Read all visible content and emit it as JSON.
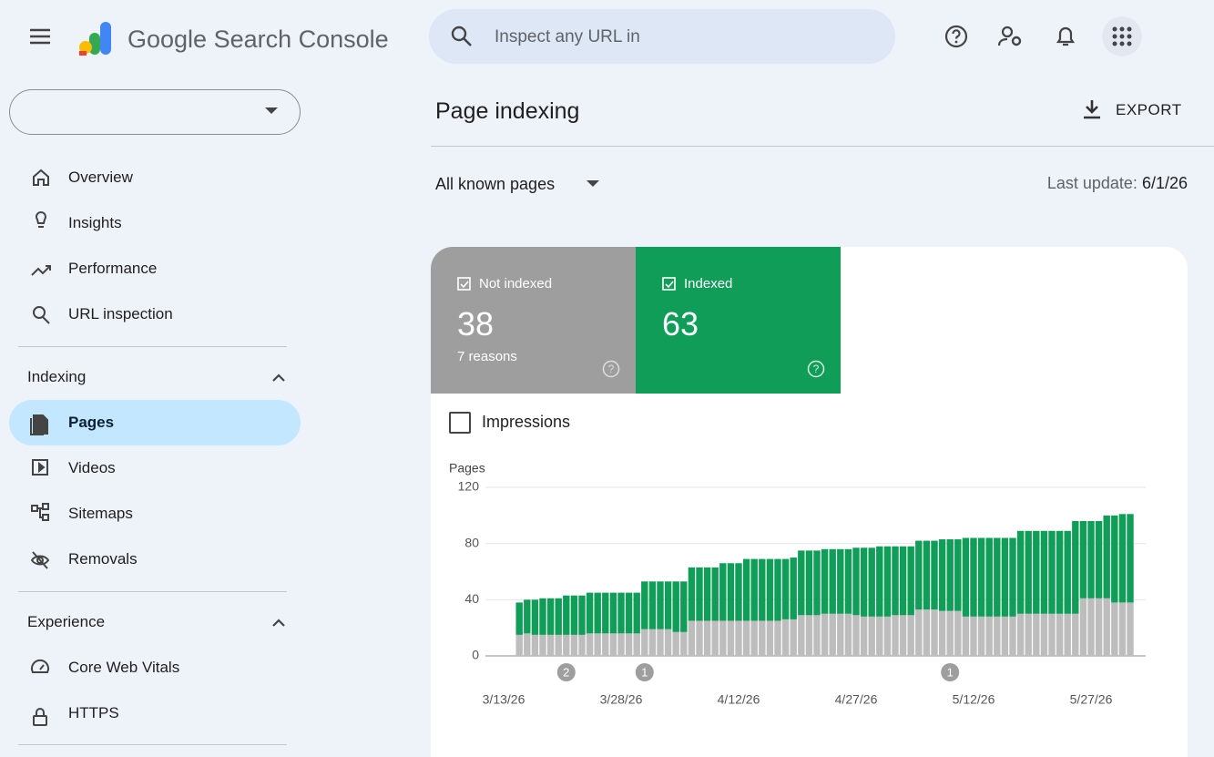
{
  "header": {
    "title": "Google Search Console",
    "search_placeholder": "Inspect any URL in"
  },
  "sidebar": {
    "main": [
      "Overview",
      "Insights",
      "Performance",
      "URL inspection"
    ],
    "sections": [
      {
        "title": "Indexing",
        "items": [
          "Pages",
          "Videos",
          "Sitemaps",
          "Removals"
        ]
      },
      {
        "title": "Experience",
        "items": [
          "Core Web Vitals",
          "HTTPS"
        ]
      }
    ]
  },
  "page": {
    "title": "Page indexing",
    "export": "EXPORT",
    "filter": "All known pages",
    "last_update_label": "Last update:",
    "last_update": "6/1/26"
  },
  "cards": [
    {
      "count": 38,
      "note": "7 reasons"
    },
    {
      "count": 63
    }
  ],
  "toggle": "Impressions",
  "chart_data": {
    "type": "bar",
    "stacked": true,
    "y_label": "Pages",
    "categories": [
      "3/13/26",
      null,
      null,
      null,
      null,
      null,
      null,
      null,
      null,
      null,
      null,
      null,
      null,
      null,
      null,
      "3/28/26",
      null,
      null,
      null,
      null,
      null,
      null,
      null,
      null,
      null,
      null,
      null,
      null,
      null,
      null,
      "4/12/26",
      null,
      null,
      null,
      null,
      null,
      null,
      null,
      null,
      null,
      null,
      null,
      null,
      null,
      null,
      "4/27/26",
      null,
      null,
      null,
      null,
      null,
      null,
      null,
      null,
      null,
      null,
      null,
      null,
      null,
      null,
      "5/12/26",
      null,
      null,
      null,
      null,
      null,
      null,
      null,
      null,
      null,
      null,
      null,
      null,
      null,
      null,
      "5/27/26",
      null,
      null,
      null,
      null,
      null
    ],
    "series": [
      {
        "name": "Not indexed",
        "color": "#bdbdbd",
        "card_color": "#9e9e9e",
        "values": [
          null,
          null,
          15,
          16,
          15,
          15,
          15,
          15,
          15,
          15,
          15,
          16,
          16,
          16,
          16,
          16,
          16,
          16,
          19,
          19,
          19,
          19,
          17,
          17,
          25,
          25,
          25,
          25,
          25,
          25,
          25,
          25,
          25,
          25,
          25,
          25,
          26,
          26,
          29,
          29,
          29,
          30,
          30,
          30,
          30,
          29,
          28,
          28,
          28,
          28,
          29,
          29,
          29,
          33,
          33,
          33,
          32,
          32,
          32,
          28,
          28,
          28,
          28,
          28,
          28,
          28,
          30,
          30,
          30,
          30,
          30,
          30,
          30,
          30,
          41,
          41,
          41,
          41,
          38,
          38,
          38
        ]
      },
      {
        "name": "Indexed",
        "color": "#0f9d58",
        "card_color": "#109d58",
        "values": [
          null,
          null,
          23,
          24,
          25,
          26,
          26,
          26,
          28,
          28,
          28,
          29,
          29,
          29,
          29,
          29,
          29,
          29,
          34,
          34,
          34,
          34,
          36,
          36,
          38,
          38,
          38,
          38,
          41,
          41,
          41,
          44,
          44,
          44,
          44,
          44,
          43,
          44,
          46,
          46,
          46,
          46,
          46,
          46,
          46,
          48,
          49,
          49,
          50,
          50,
          49,
          49,
          49,
          49,
          49,
          49,
          51,
          51,
          51,
          56,
          56,
          56,
          56,
          56,
          56,
          56,
          59,
          59,
          59,
          59,
          59,
          59,
          59,
          66,
          55,
          55,
          55,
          59,
          62,
          63,
          63
        ]
      }
    ],
    "ylim": [
      0,
      120
    ],
    "yticks": [
      0,
      40,
      80,
      120
    ],
    "grid": true,
    "annotations": [
      "2",
      "1",
      "1"
    ]
  }
}
